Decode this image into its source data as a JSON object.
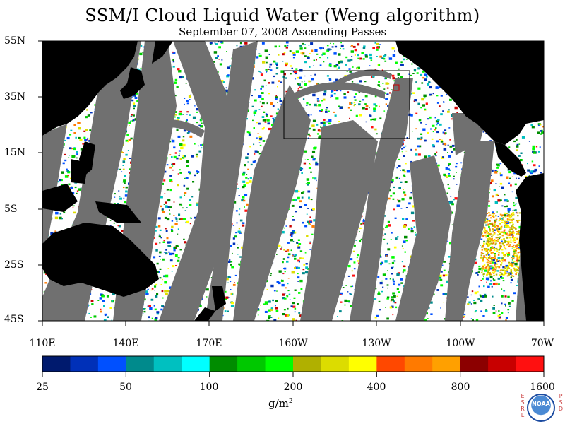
{
  "title": "SSM/I Cloud Liquid Water (Weng algorithm)",
  "subtitle": "September 07, 2008  Ascending Passes",
  "latitude_labels": [
    "55N",
    "35N",
    "15N",
    "5S",
    "25S",
    "45S"
  ],
  "longitude_labels": [
    "110E",
    "140E",
    "170E",
    "160W",
    "130W",
    "100W",
    "70W"
  ],
  "colorbar": {
    "labels": [
      "25",
      "50",
      "100",
      "200",
      "400",
      "800",
      "1600"
    ],
    "units": "g/m",
    "units_sup": "2",
    "colors": [
      "#001a6e",
      "#0030b8",
      "#0050ff",
      "#008a8c",
      "#00c0c0",
      "#00ffff",
      "#008c00",
      "#00c800",
      "#00ff00",
      "#b0b000",
      "#dcdc00",
      "#ffff00",
      "#ff4800",
      "#ff7a00",
      "#ffa000",
      "#8c0000",
      "#c80000",
      "#ff1010"
    ]
  },
  "colors": {
    "land": "#000000",
    "gap": "#707070",
    "ocean_no_data": "#ffffff"
  },
  "branding": {
    "left_letters": [
      "E",
      "S",
      "R",
      "L"
    ],
    "right_letters": [
      "P",
      "S",
      "D"
    ],
    "logo_text": "NOAA"
  }
}
